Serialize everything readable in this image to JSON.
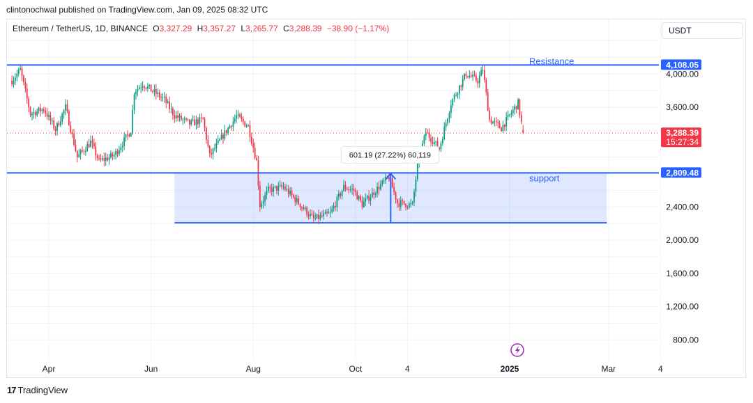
{
  "header": {
    "published": "clintonochwal published on TradingView.com, Jan 09, 2025 08:32 UTC",
    "symbol": "Ethereum / TetherUS, 1D, BINANCE",
    "o_label": "O",
    "o_value": "3,327.29",
    "h_label": "H",
    "h_value": "3,357.27",
    "l_label": "L",
    "l_value": "3,265.77",
    "c_label": "C",
    "c_value": "3,288.39",
    "change": "−38.90 (−1.17%)",
    "currency": "USDT"
  },
  "footer": {
    "brand": "TradingView"
  },
  "colors": {
    "up": "#089981",
    "down": "#f23645",
    "line": "#2962ff",
    "zone": "#2962ff"
  },
  "chart_data": {
    "type": "candlestick",
    "y_ticks": [
      800,
      1200,
      1600,
      2000,
      2400,
      3600,
      4000
    ],
    "y_tick_labels": [
      "800.00",
      "1,200.00",
      "1,600.00",
      "2,000.00",
      "2,400.00",
      "3,600.00",
      "4,000.00"
    ],
    "x_ticks": [
      {
        "date": "2024-04-01",
        "label": "Apr"
      },
      {
        "date": "2024-06-01",
        "label": "Jun"
      },
      {
        "date": "2024-08-01",
        "label": "Aug"
      },
      {
        "date": "2024-10-01",
        "label": "Oct"
      },
      {
        "date": "2024-11-01",
        "label": "4"
      },
      {
        "date": "2025-01-01",
        "label": "2025"
      },
      {
        "date": "2025-03-01",
        "label": "Mar"
      },
      {
        "date": "2025-04-01",
        "label": "4"
      }
    ],
    "price_labels": [
      {
        "value": 4108.05,
        "label": "4,108.05",
        "kind": "line"
      },
      {
        "value": 3288.39,
        "label": "3,288.39",
        "sub": "15:27:34",
        "kind": "last"
      },
      {
        "value": 2809.48,
        "label": "2,809.48",
        "kind": "line"
      }
    ],
    "lines": [
      {
        "name": "resistance",
        "value": 4108.05,
        "label": "Resistance"
      },
      {
        "name": "support",
        "value": 2809.48,
        "label": "support"
      }
    ],
    "zone": {
      "start": "2024-06-15",
      "end": "2025-02-28",
      "top": 2809.48,
      "bottom": 2208.29
    },
    "measure": {
      "date": "2024-10-22",
      "from": 2208.29,
      "to": 2809.48,
      "label": "601.19 (27.22%) 60,119"
    },
    "last_price": 3288.39,
    "keypoints": [
      [
        "2024-03-10",
        3920
      ],
      [
        "2024-03-15",
        4050
      ],
      [
        "2024-03-21",
        3520
      ],
      [
        "2024-03-29",
        3580
      ],
      [
        "2024-04-05",
        3330
      ],
      [
        "2024-04-11",
        3600
      ],
      [
        "2024-04-18",
        3000
      ],
      [
        "2024-04-26",
        3180
      ],
      [
        "2024-05-01",
        2950
      ],
      [
        "2024-05-10",
        3020
      ],
      [
        "2024-05-20",
        3320
      ],
      [
        "2024-05-22",
        3790
      ],
      [
        "2024-05-27",
        3880
      ],
      [
        "2024-06-03",
        3780
      ],
      [
        "2024-06-09",
        3690
      ],
      [
        "2024-06-15",
        3500
      ],
      [
        "2024-06-24",
        3400
      ],
      [
        "2024-07-02",
        3450
      ],
      [
        "2024-07-06",
        3010
      ],
      [
        "2024-07-14",
        3260
      ],
      [
        "2024-07-22",
        3490
      ],
      [
        "2024-07-29",
        3370
      ],
      [
        "2024-08-03",
        2950
      ],
      [
        "2024-08-05",
        2420
      ],
      [
        "2024-08-10",
        2600
      ],
      [
        "2024-08-19",
        2640
      ],
      [
        "2024-08-27",
        2470
      ],
      [
        "2024-09-06",
        2250
      ],
      [
        "2024-09-16",
        2320
      ],
      [
        "2024-09-24",
        2640
      ],
      [
        "2024-09-30",
        2600
      ],
      [
        "2024-10-05",
        2430
      ],
      [
        "2024-10-14",
        2620
      ],
      [
        "2024-10-21",
        2760
      ],
      [
        "2024-10-26",
        2450
      ],
      [
        "2024-11-04",
        2420
      ],
      [
        "2024-11-07",
        2900
      ],
      [
        "2024-11-12",
        3300
      ],
      [
        "2024-11-20",
        3100
      ],
      [
        "2024-11-27",
        3650
      ],
      [
        "2024-12-06",
        4000
      ],
      [
        "2024-12-13",
        3920
      ],
      [
        "2024-12-16",
        4060
      ],
      [
        "2024-12-20",
        3450
      ],
      [
        "2024-12-27",
        3350
      ],
      [
        "2025-01-06",
        3650
      ],
      [
        "2025-01-09",
        3288
      ]
    ]
  }
}
